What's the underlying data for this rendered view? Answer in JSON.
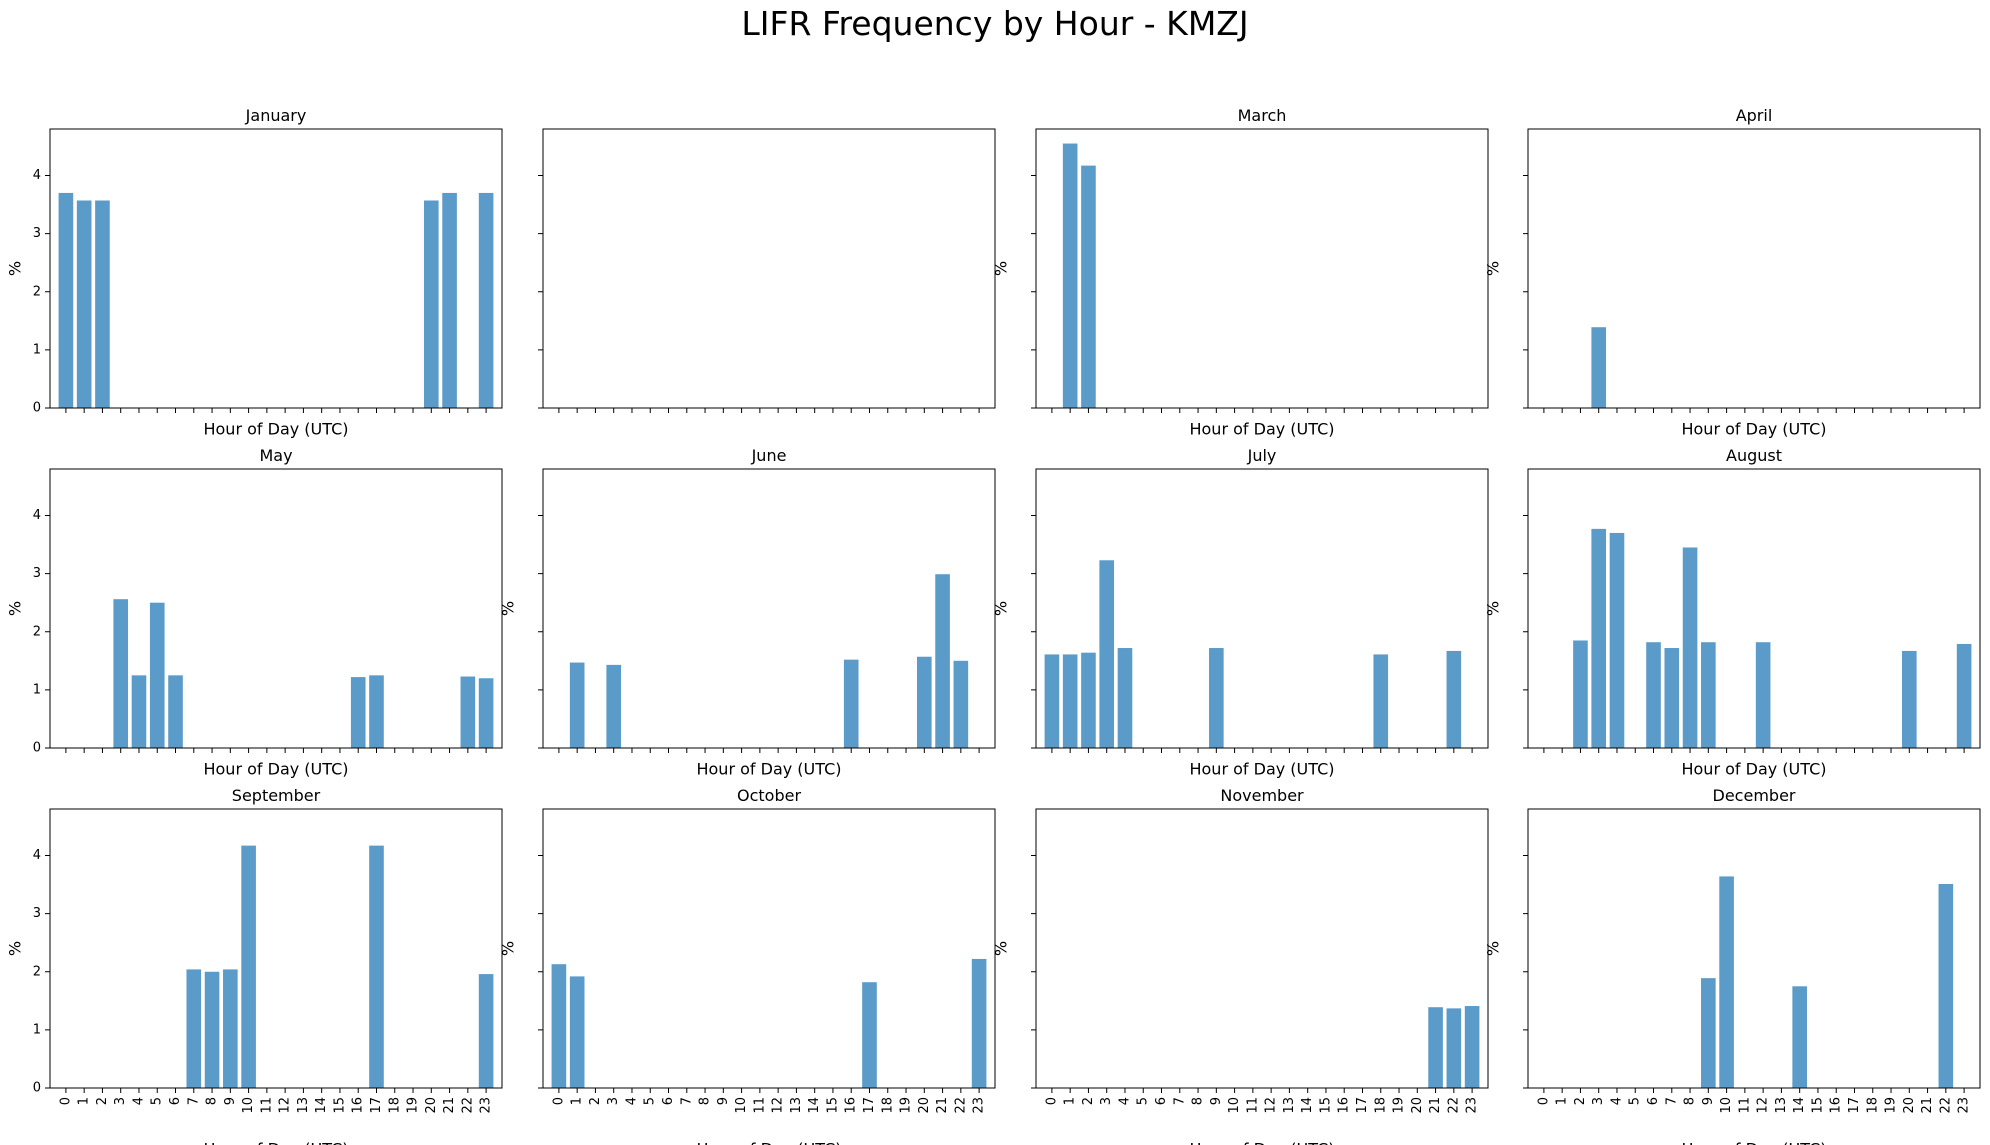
{
  "figure": {
    "suptitle": "LIFR Frequency by Hour - KMZJ",
    "bar_color": "#5b9bc9"
  },
  "chart_data": [
    {
      "type": "bar",
      "title": "January",
      "xlabel": "Hour of Day (UTC)",
      "ylabel": "%",
      "ylim": [
        0,
        4.8
      ],
      "yticks": [
        0,
        1,
        2,
        3,
        4
      ],
      "categories": [
        "0",
        "1",
        "2",
        "3",
        "4",
        "5",
        "6",
        "7",
        "8",
        "9",
        "10",
        "11",
        "12",
        "13",
        "14",
        "15",
        "16",
        "17",
        "18",
        "19",
        "20",
        "21",
        "22",
        "23"
      ],
      "values": [
        3.7,
        3.57,
        3.57,
        0,
        0,
        0,
        0,
        0,
        0,
        0,
        0,
        0,
        0,
        0,
        0,
        0,
        0,
        0,
        0,
        0,
        3.57,
        3.7,
        0,
        3.7
      ],
      "show_xtick_labels": false,
      "show_ytick_labels": true
    },
    {
      "type": "bar",
      "title": "",
      "xlabel": "",
      "ylabel": "",
      "ylim": [
        0,
        4.8
      ],
      "yticks": [
        0,
        1,
        2,
        3,
        4
      ],
      "categories": [
        "0",
        "1",
        "2",
        "3",
        "4",
        "5",
        "6",
        "7",
        "8",
        "9",
        "10",
        "11",
        "12",
        "13",
        "14",
        "15",
        "16",
        "17",
        "18",
        "19",
        "20",
        "21",
        "22",
        "23"
      ],
      "values": [
        0,
        0,
        0,
        0,
        0,
        0,
        0,
        0,
        0,
        0,
        0,
        0,
        0,
        0,
        0,
        0,
        0,
        0,
        0,
        0,
        0,
        0,
        0,
        0
      ],
      "show_xtick_labels": false,
      "show_ytick_labels": false
    },
    {
      "type": "bar",
      "title": "March",
      "xlabel": "Hour of Day (UTC)",
      "ylabel": "%",
      "ylim": [
        0,
        4.8
      ],
      "yticks": [
        0,
        1,
        2,
        3,
        4
      ],
      "categories": [
        "0",
        "1",
        "2",
        "3",
        "4",
        "5",
        "6",
        "7",
        "8",
        "9",
        "10",
        "11",
        "12",
        "13",
        "14",
        "15",
        "16",
        "17",
        "18",
        "19",
        "20",
        "21",
        "22",
        "23"
      ],
      "values": [
        0,
        4.55,
        4.17,
        0,
        0,
        0,
        0,
        0,
        0,
        0,
        0,
        0,
        0,
        0,
        0,
        0,
        0,
        0,
        0,
        0,
        0,
        0,
        0,
        0
      ],
      "show_xtick_labels": false,
      "show_ytick_labels": false
    },
    {
      "type": "bar",
      "title": "April",
      "xlabel": "Hour of Day (UTC)",
      "ylabel": "%",
      "ylim": [
        0,
        4.8
      ],
      "yticks": [
        0,
        1,
        2,
        3,
        4
      ],
      "categories": [
        "0",
        "1",
        "2",
        "3",
        "4",
        "5",
        "6",
        "7",
        "8",
        "9",
        "10",
        "11",
        "12",
        "13",
        "14",
        "15",
        "16",
        "17",
        "18",
        "19",
        "20",
        "21",
        "22",
        "23"
      ],
      "values": [
        0,
        0,
        0,
        1.39,
        0,
        0,
        0,
        0,
        0,
        0,
        0,
        0,
        0,
        0,
        0,
        0,
        0,
        0,
        0,
        0,
        0,
        0,
        0,
        0
      ],
      "show_xtick_labels": false,
      "show_ytick_labels": false
    },
    {
      "type": "bar",
      "title": "May",
      "xlabel": "Hour of Day (UTC)",
      "ylabel": "%",
      "ylim": [
        0,
        4.8
      ],
      "yticks": [
        0,
        1,
        2,
        3,
        4
      ],
      "categories": [
        "0",
        "1",
        "2",
        "3",
        "4",
        "5",
        "6",
        "7",
        "8",
        "9",
        "10",
        "11",
        "12",
        "13",
        "14",
        "15",
        "16",
        "17",
        "18",
        "19",
        "20",
        "21",
        "22",
        "23"
      ],
      "values": [
        0,
        0,
        0,
        2.56,
        1.25,
        2.5,
        1.25,
        0,
        0,
        0,
        0,
        0,
        0,
        0,
        0,
        0,
        1.22,
        1.25,
        0,
        0,
        0,
        0,
        1.23,
        1.2
      ],
      "show_xtick_labels": false,
      "show_ytick_labels": true
    },
    {
      "type": "bar",
      "title": "June",
      "xlabel": "Hour of Day (UTC)",
      "ylabel": "%",
      "ylim": [
        0,
        4.8
      ],
      "yticks": [
        0,
        1,
        2,
        3,
        4
      ],
      "categories": [
        "0",
        "1",
        "2",
        "3",
        "4",
        "5",
        "6",
        "7",
        "8",
        "9",
        "10",
        "11",
        "12",
        "13",
        "14",
        "15",
        "16",
        "17",
        "18",
        "19",
        "20",
        "21",
        "22",
        "23"
      ],
      "values": [
        0,
        1.47,
        0,
        1.43,
        0,
        0,
        0,
        0,
        0,
        0,
        0,
        0,
        0,
        0,
        0,
        0,
        1.52,
        0,
        0,
        0,
        1.57,
        2.99,
        1.5,
        0
      ],
      "show_xtick_labels": false,
      "show_ytick_labels": false
    },
    {
      "type": "bar",
      "title": "July",
      "xlabel": "Hour of Day (UTC)",
      "ylabel": "%",
      "ylim": [
        0,
        4.8
      ],
      "yticks": [
        0,
        1,
        2,
        3,
        4
      ],
      "categories": [
        "0",
        "1",
        "2",
        "3",
        "4",
        "5",
        "6",
        "7",
        "8",
        "9",
        "10",
        "11",
        "12",
        "13",
        "14",
        "15",
        "16",
        "17",
        "18",
        "19",
        "20",
        "21",
        "22",
        "23"
      ],
      "values": [
        1.61,
        1.61,
        1.64,
        3.23,
        1.72,
        0,
        0,
        0,
        0,
        1.72,
        0,
        0,
        0,
        0,
        0,
        0,
        0,
        0,
        1.61,
        0,
        0,
        0,
        1.67,
        0
      ],
      "show_xtick_labels": false,
      "show_ytick_labels": false
    },
    {
      "type": "bar",
      "title": "August",
      "xlabel": "Hour of Day (UTC)",
      "ylabel": "%",
      "ylim": [
        0,
        4.8
      ],
      "yticks": [
        0,
        1,
        2,
        3,
        4
      ],
      "categories": [
        "0",
        "1",
        "2",
        "3",
        "4",
        "5",
        "6",
        "7",
        "8",
        "9",
        "10",
        "11",
        "12",
        "13",
        "14",
        "15",
        "16",
        "17",
        "18",
        "19",
        "20",
        "21",
        "22",
        "23"
      ],
      "values": [
        0,
        0,
        1.85,
        3.77,
        3.7,
        0,
        1.82,
        1.72,
        3.45,
        1.82,
        0,
        0,
        1.82,
        0,
        0,
        0,
        0,
        0,
        0,
        0,
        1.67,
        0,
        0,
        1.79
      ],
      "show_xtick_labels": false,
      "show_ytick_labels": false
    },
    {
      "type": "bar",
      "title": "September",
      "xlabel": "Hour of Day (UTC)",
      "ylabel": "%",
      "ylim": [
        0,
        4.8
      ],
      "yticks": [
        0,
        1,
        2,
        3,
        4
      ],
      "categories": [
        "0",
        "1",
        "2",
        "3",
        "4",
        "5",
        "6",
        "7",
        "8",
        "9",
        "10",
        "11",
        "12",
        "13",
        "14",
        "15",
        "16",
        "17",
        "18",
        "19",
        "20",
        "21",
        "22",
        "23"
      ],
      "values": [
        0,
        0,
        0,
        0,
        0,
        0,
        0,
        2.04,
        2.0,
        2.04,
        4.17,
        0,
        0,
        0,
        0,
        0,
        0,
        4.17,
        0,
        0,
        0,
        0,
        0,
        1.96
      ],
      "show_xtick_labels": true,
      "show_ytick_labels": true
    },
    {
      "type": "bar",
      "title": "October",
      "xlabel": "Hour of Day (UTC)",
      "ylabel": "%",
      "ylim": [
        0,
        4.8
      ],
      "yticks": [
        0,
        1,
        2,
        3,
        4
      ],
      "categories": [
        "0",
        "1",
        "2",
        "3",
        "4",
        "5",
        "6",
        "7",
        "8",
        "9",
        "10",
        "11",
        "12",
        "13",
        "14",
        "15",
        "16",
        "17",
        "18",
        "19",
        "20",
        "21",
        "22",
        "23"
      ],
      "values": [
        2.13,
        1.92,
        0,
        0,
        0,
        0,
        0,
        0,
        0,
        0,
        0,
        0,
        0,
        0,
        0,
        0,
        0,
        1.82,
        0,
        0,
        0,
        0,
        0,
        2.22
      ],
      "show_xtick_labels": true,
      "show_ytick_labels": false
    },
    {
      "type": "bar",
      "title": "November",
      "xlabel": "Hour of Day (UTC)",
      "ylabel": "%",
      "ylim": [
        0,
        4.8
      ],
      "yticks": [
        0,
        1,
        2,
        3,
        4
      ],
      "categories": [
        "0",
        "1",
        "2",
        "3",
        "4",
        "5",
        "6",
        "7",
        "8",
        "9",
        "10",
        "11",
        "12",
        "13",
        "14",
        "15",
        "16",
        "17",
        "18",
        "19",
        "20",
        "21",
        "22",
        "23"
      ],
      "values": [
        0,
        0,
        0,
        0,
        0,
        0,
        0,
        0,
        0,
        0,
        0,
        0,
        0,
        0,
        0,
        0,
        0,
        0,
        0,
        0,
        0,
        1.39,
        1.37,
        1.41
      ],
      "show_xtick_labels": true,
      "show_ytick_labels": false
    },
    {
      "type": "bar",
      "title": "December",
      "xlabel": "Hour of Day (UTC)",
      "ylabel": "%",
      "ylim": [
        0,
        4.8
      ],
      "yticks": [
        0,
        1,
        2,
        3,
        4
      ],
      "categories": [
        "0",
        "1",
        "2",
        "3",
        "4",
        "5",
        "6",
        "7",
        "8",
        "9",
        "10",
        "11",
        "12",
        "13",
        "14",
        "15",
        "16",
        "17",
        "18",
        "19",
        "20",
        "21",
        "22",
        "23"
      ],
      "values": [
        0,
        0,
        0,
        0,
        0,
        0,
        0,
        0,
        0,
        1.89,
        3.64,
        0,
        0,
        0,
        1.75,
        0,
        0,
        0,
        0,
        0,
        0,
        0,
        3.51,
        0
      ],
      "show_xtick_labels": true,
      "show_ytick_labels": false
    }
  ]
}
